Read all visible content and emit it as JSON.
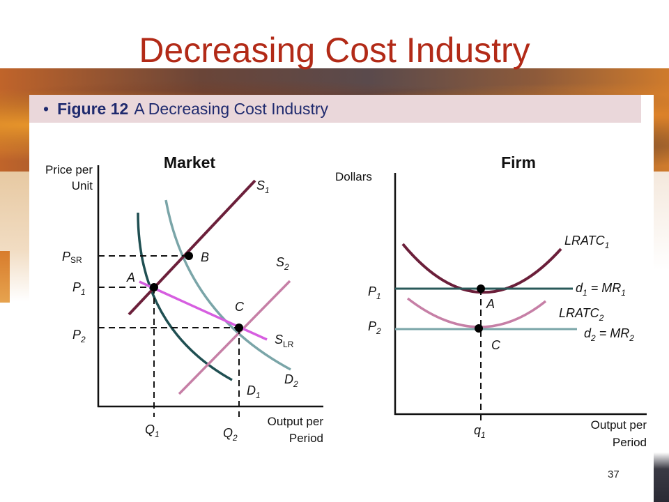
{
  "title": "Decreasing Cost Industry",
  "caption": {
    "bullet": "•",
    "figure": "Figure 12",
    "text": "A Decreasing Cost Industry"
  },
  "page_number": "37",
  "market": {
    "heading": "Market",
    "y_axis_label_line1": "Price per",
    "y_axis_label_line2": "Unit",
    "x_axis_label_line1": "Output per",
    "x_axis_label_line2": "Period",
    "labels": {
      "s1": "S",
      "s1_sub": "1",
      "s2": "S",
      "s2_sub": "2",
      "slr": "S",
      "slr_sub": "LR",
      "d1": "D",
      "d1_sub": "1",
      "d2": "D",
      "d2_sub": "2",
      "psr": "P",
      "psr_sub": "SR",
      "p1": "P",
      "p1_sub": "1",
      "p2": "P",
      "p2_sub": "2",
      "q1": "Q",
      "q1_sub": "1",
      "q2": "Q",
      "q2_sub": "2",
      "point_a": "A",
      "point_b": "B",
      "point_c": "C"
    }
  },
  "firm": {
    "heading": "Firm",
    "y_axis_label": "Dollars",
    "x_axis_label_line1": "Output per",
    "x_axis_label_line2": "Period",
    "labels": {
      "lratc1": "LRATC",
      "lratc1_sub": "1",
      "lratc2": "LRATC",
      "lratc2_sub": "2",
      "d1": "d",
      "d1_sub": "1",
      "d1_rest": " = MR",
      "d1_rest_sub": "1",
      "d2": "d",
      "d2_sub": "2",
      "d2_rest": " = MR",
      "d2_rest_sub": "2",
      "p1": "P",
      "p1_sub": "1",
      "p2": "P",
      "p2_sub": "2",
      "q1": "q",
      "q1_sub": "1",
      "point_a": "A",
      "point_c": "C"
    }
  },
  "colors": {
    "title": "#b22a17",
    "caption_text": "#1f2a6e",
    "s1": "#6b1f3a",
    "s2": "#c67fa6",
    "slr": "#d65ee0",
    "d1": "#1f4f52",
    "d2": "#7aa5a8",
    "lratc1": "#6b1f3a",
    "lratc2": "#c67fa6",
    "firm_d1": "#2a5a5a",
    "firm_d2": "#7aa5a8"
  }
}
